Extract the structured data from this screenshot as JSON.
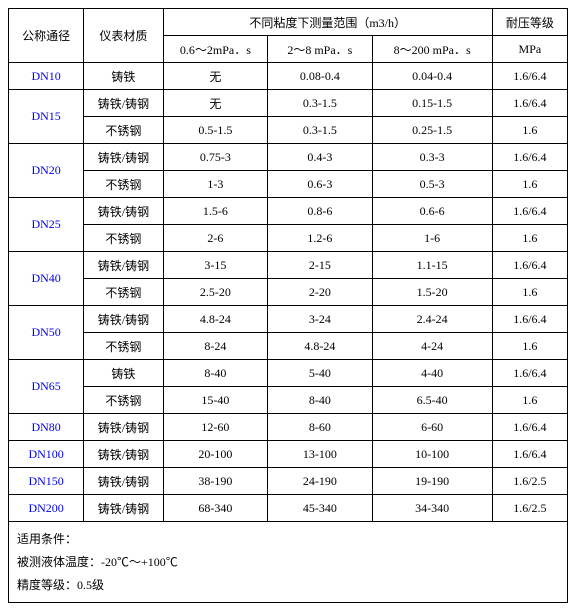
{
  "header": {
    "dn": "公称通径",
    "material": "仪表材质",
    "viscosity_group": "不同粘度下测量范围（m3/h）",
    "v1": "0.6～2mPa．s",
    "v2": "2～8 mPa．s",
    "v3": "8～200 mPa．s",
    "pressure_group": "耐压等级",
    "pressure_unit": "MPa"
  },
  "rows": [
    {
      "dn": "DN10",
      "dn_rowspan": 1,
      "mat": "铸铁",
      "v1": "无",
      "v2": "0.08-0.4",
      "v3": "0.04-0.4",
      "mpa": "1.6/6.4"
    },
    {
      "dn": "DN15",
      "dn_rowspan": 2,
      "mat": "铸铁/铸钢",
      "v1": "无",
      "v2": "0.3-1.5",
      "v3": "0.15-1.5",
      "mpa": "1.6/6.4"
    },
    {
      "mat": "不锈钢",
      "v1": "0.5-1.5",
      "v2": "0.3-1.5",
      "v3": "0.25-1.5",
      "mpa": "1.6"
    },
    {
      "dn": "DN20",
      "dn_rowspan": 2,
      "mat": "铸铁/铸钢",
      "v1": "0.75-3",
      "v2": "0.4-3",
      "v3": "0.3-3",
      "mpa": "1.6/6.4"
    },
    {
      "mat": "不锈钢",
      "v1": "1-3",
      "v2": "0.6-3",
      "v3": "0.5-3",
      "mpa": "1.6"
    },
    {
      "dn": "DN25",
      "dn_rowspan": 2,
      "mat": "铸铁/铸钢",
      "v1": "1.5-6",
      "v2": "0.8-6",
      "v3": "0.6-6",
      "mpa": "1.6/6.4"
    },
    {
      "mat": "不锈钢",
      "v1": "2-6",
      "v2": "1.2-6",
      "v3": "1-6",
      "mpa": "1.6"
    },
    {
      "dn": "DN40",
      "dn_rowspan": 2,
      "mat": "铸铁/铸钢",
      "v1": "3-15",
      "v2": "2-15",
      "v3": "1.1-15",
      "mpa": "1.6/6.4"
    },
    {
      "mat": "不锈钢",
      "v1": "2.5-20",
      "v2": "2-20",
      "v3": "1.5-20",
      "mpa": "1.6"
    },
    {
      "dn": "DN50",
      "dn_rowspan": 2,
      "mat": "铸铁/铸钢",
      "v1": "4.8-24",
      "v2": "3-24",
      "v3": "2.4-24",
      "mpa": "1.6/6.4"
    },
    {
      "mat": "不锈钢",
      "v1": "8-24",
      "v2": "4.8-24",
      "v3": "4-24",
      "mpa": "1.6"
    },
    {
      "dn": "DN65",
      "dn_rowspan": 2,
      "mat": "铸铁",
      "v1": "8-40",
      "v2": "5-40",
      "v3": "4-40",
      "mpa": "1.6/6.4"
    },
    {
      "mat": "不锈钢",
      "v1": "15-40",
      "v2": "8-40",
      "v3": "6.5-40",
      "mpa": "1.6"
    },
    {
      "dn": "DN80",
      "dn_rowspan": 1,
      "mat": "铸铁/铸钢",
      "v1": "12-60",
      "v2": "8-60",
      "v3": "6-60",
      "mpa": "1.6/6.4"
    },
    {
      "dn": "DN100",
      "dn_rowspan": 1,
      "mat": "铸铁/铸钢",
      "v1": "20-100",
      "v2": "13-100",
      "v3": "10-100",
      "mpa": "1.6/6.4"
    },
    {
      "dn": "DN150",
      "dn_rowspan": 1,
      "mat": "铸铁/铸钢",
      "v1": "38-190",
      "v2": "24-190",
      "v3": "19-190",
      "mpa": "1.6/2.5"
    },
    {
      "dn": "DN200",
      "dn_rowspan": 1,
      "mat": "铸铁/铸钢",
      "v1": "68-340",
      "v2": "45-340",
      "v3": "34-340",
      "mpa": "1.6/2.5"
    }
  ],
  "footer": {
    "line1": "适用条件：",
    "line2": "被测液体温度：-20℃～+100℃",
    "line3": "精度等级：0.5级"
  }
}
